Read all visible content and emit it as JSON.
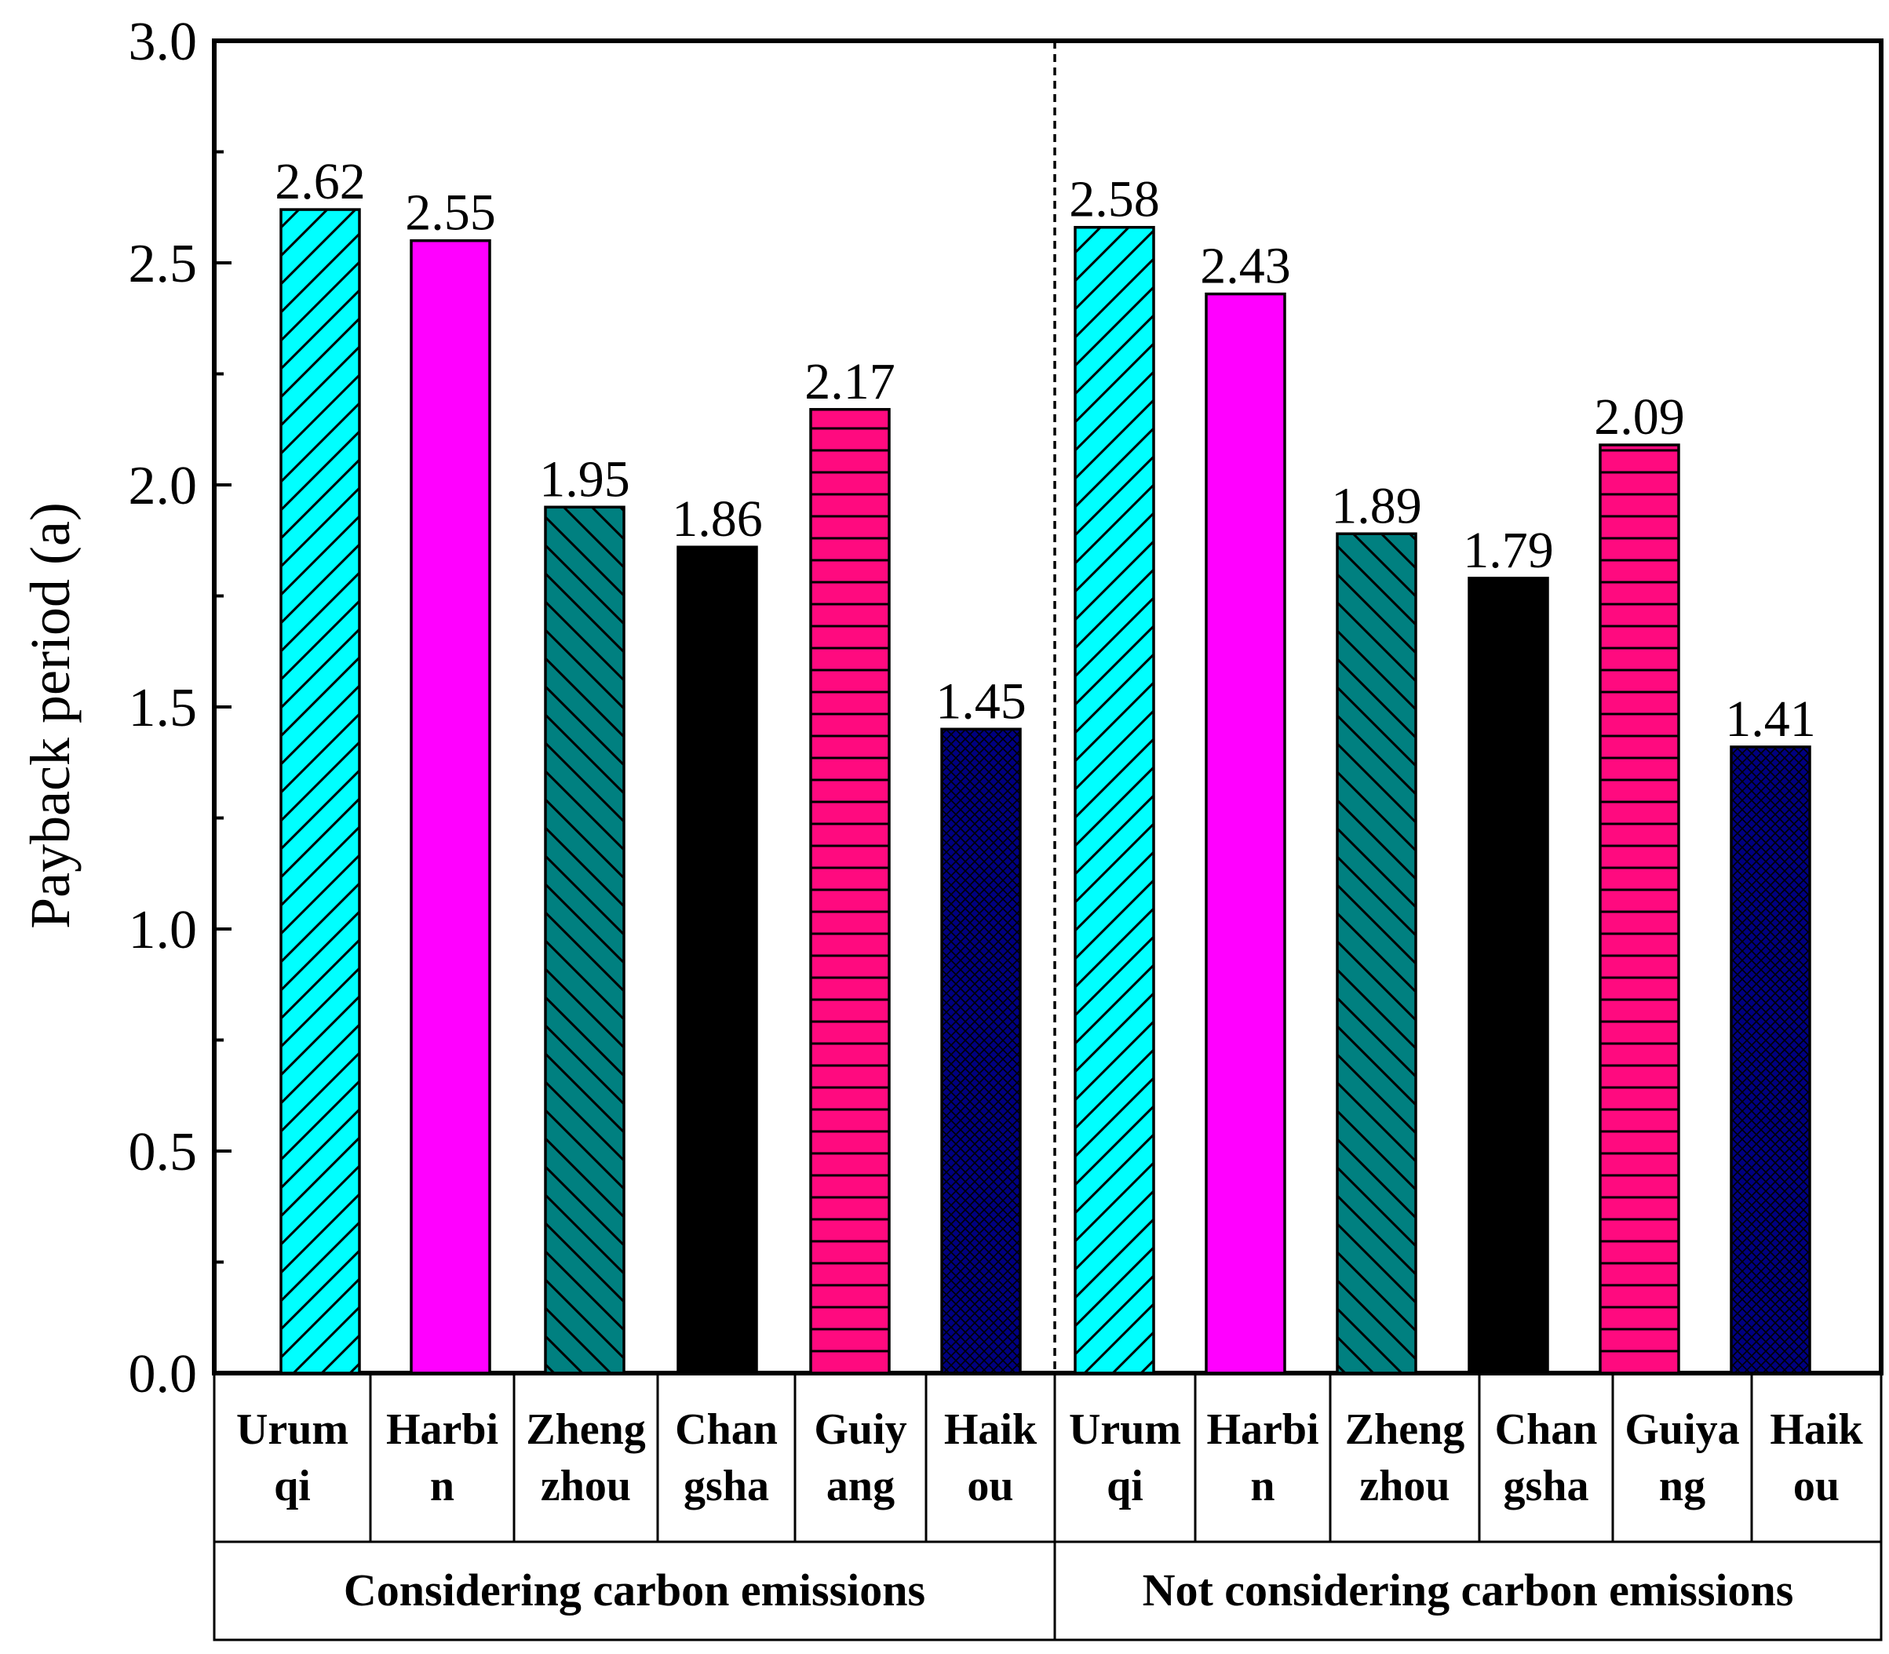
{
  "chart_data": {
    "type": "bar",
    "ylabel": "Payback period (a)",
    "ylim": [
      0,
      3.0
    ],
    "yticks": [
      "0.0",
      "0.5",
      "1.0",
      "1.5",
      "2.0",
      "2.5",
      "3.0"
    ],
    "ytick_values": [
      0,
      0.5,
      1.0,
      1.5,
      2.0,
      2.5,
      3.0
    ],
    "groups": [
      {
        "name": "Considering carbon emissions",
        "categories": [
          {
            "lines": [
              "Urum",
              "qi"
            ],
            "value": 2.62,
            "label": "2.62",
            "color": "#00ffff",
            "pattern": "diag-up"
          },
          {
            "lines": [
              "Harbi",
              "n"
            ],
            "value": 2.55,
            "label": "2.55",
            "color": "#ff00ff",
            "pattern": "none"
          },
          {
            "lines": [
              "Zheng",
              "zhou"
            ],
            "value": 1.95,
            "label": "1.95",
            "color": "#008080",
            "pattern": "diag-down"
          },
          {
            "lines": [
              "Chan",
              "gsha"
            ],
            "value": 1.86,
            "label": "1.86",
            "color": "#000000",
            "pattern": "none"
          },
          {
            "lines": [
              "Guiy",
              "ang"
            ],
            "value": 2.17,
            "label": "2.17",
            "color": "#ff0a7f",
            "pattern": "horizontal"
          },
          {
            "lines": [
              "Haik",
              "ou"
            ],
            "value": 1.45,
            "label": "1.45",
            "color": "#000080",
            "pattern": "crosshatch"
          }
        ]
      },
      {
        "name": "Not considering carbon emissions",
        "categories": [
          {
            "lines": [
              "Urum",
              "qi"
            ],
            "value": 2.58,
            "label": "2.58",
            "color": "#00ffff",
            "pattern": "diag-up"
          },
          {
            "lines": [
              "Harbi",
              "n"
            ],
            "value": 2.43,
            "label": "2.43",
            "color": "#ff00ff",
            "pattern": "none"
          },
          {
            "lines": [
              "Zheng",
              "zhou"
            ],
            "value": 1.89,
            "label": "1.89",
            "color": "#008080",
            "pattern": "diag-down"
          },
          {
            "lines": [
              "Chan",
              "gsha"
            ],
            "value": 1.79,
            "label": "1.79",
            "color": "#000000",
            "pattern": "none"
          },
          {
            "lines": [
              "Guiya",
              "ng"
            ],
            "value": 2.09,
            "label": "2.09",
            "color": "#ff0a7f",
            "pattern": "horizontal"
          },
          {
            "lines": [
              "Haik",
              "ou"
            ],
            "value": 1.41,
            "label": "1.41",
            "color": "#000080",
            "pattern": "crosshatch"
          }
        ]
      }
    ]
  }
}
